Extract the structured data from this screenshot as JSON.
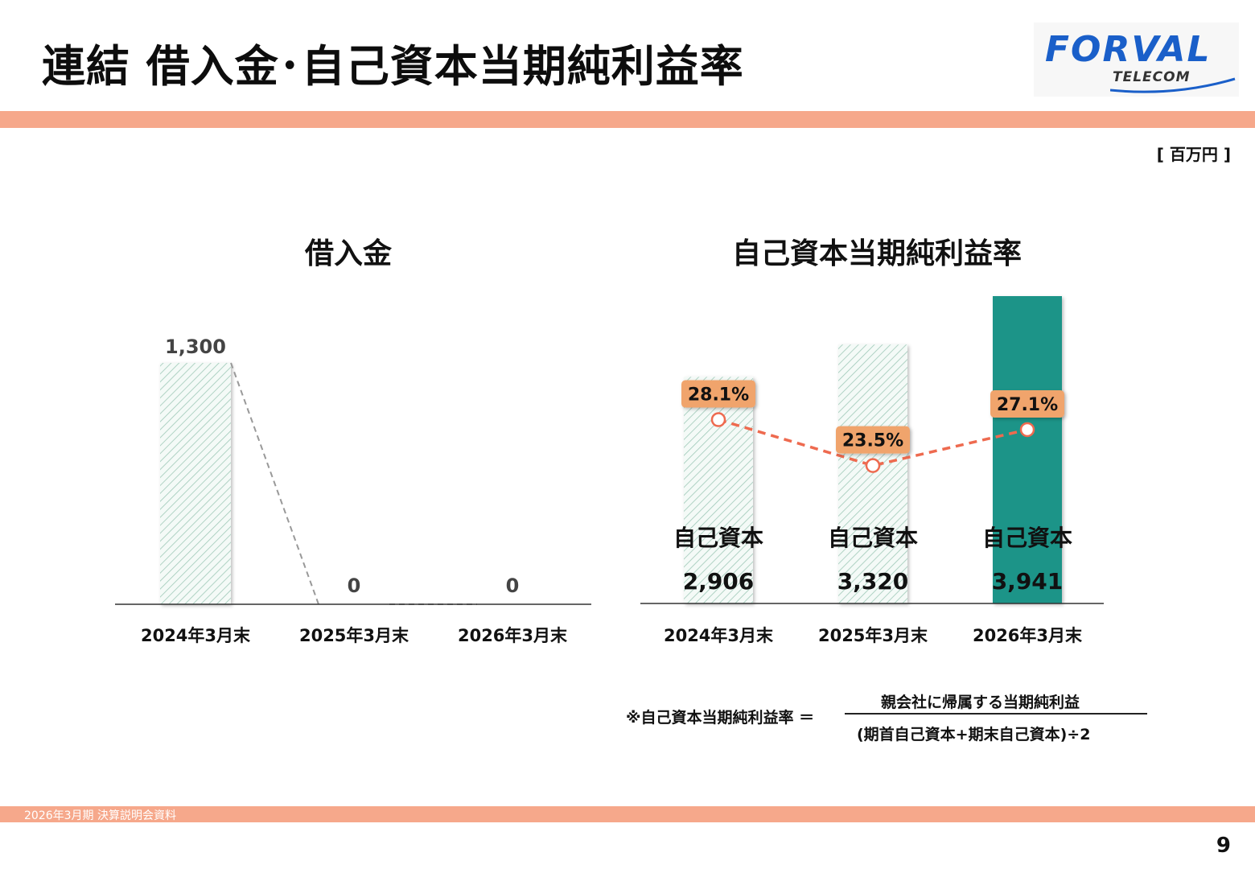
{
  "header": {
    "title": "連結 借入金･自己資本当期純利益率",
    "logo_main": "FORVAL",
    "logo_sub": "TELECOM",
    "unit": "[ 百万円 ]"
  },
  "colors": {
    "accent_band": "#f6a88b",
    "bar_hatch": "#9fc9b8",
    "bar_highlight": "#1f9488",
    "line": "#ee6a4f",
    "label_bg": "#f0a46c",
    "logo_blue": "#1a5fc9"
  },
  "chart_data": [
    {
      "type": "bar",
      "title": "借入金",
      "categories": [
        "2024年3月末",
        "2025年3月末",
        "2026年3月末"
      ],
      "values": [
        1300,
        0,
        0
      ],
      "value_labels": [
        "1,300",
        "0",
        "0"
      ],
      "ylim": [
        0,
        1300
      ],
      "grid": false
    },
    {
      "type": "bar",
      "title": "自己資本当期純利益率",
      "categories": [
        "2024年3月末",
        "2025年3月末",
        "2026年3月末"
      ],
      "series": [
        {
          "name": "自己資本",
          "type": "bar",
          "values": [
            2906,
            3320,
            3941
          ],
          "value_labels": [
            "2,906",
            "3,320",
            "3,941"
          ]
        },
        {
          "type": "line",
          "values": [
            28.1,
            23.5,
            27.1
          ],
          "value_labels": [
            "28.1%",
            "23.5%",
            "27.1%"
          ]
        }
      ],
      "ylim": [
        0,
        3941
      ],
      "highlight_index": 2,
      "grid": false
    }
  ],
  "formula": {
    "prefix": "※自己資本当期純利益率 ＝",
    "numerator": "親会社に帰属する当期純利益",
    "denominator": "(期首自己資本+期末自己資本)÷2"
  },
  "footer": {
    "text": "2026年3月期 決算説明会資料",
    "page_number": "9"
  }
}
